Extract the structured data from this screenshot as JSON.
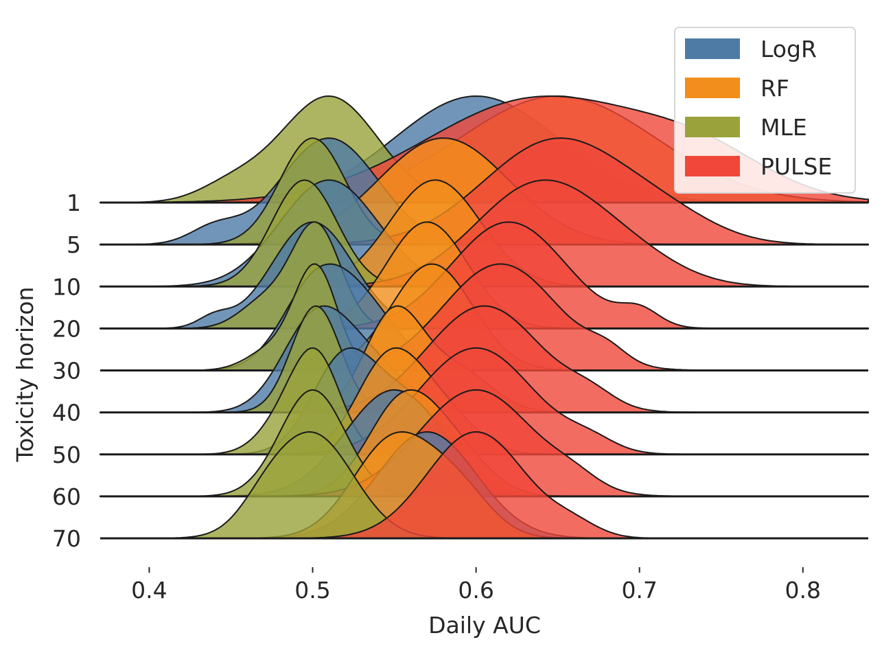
{
  "chart_data": {
    "type": "area",
    "subtype": "ridgeline (joyplot) of kernel density estimates",
    "xlabel": "Daily AUC",
    "ylabel": "Toxicity horizon",
    "xlim": [
      0.37,
      0.84
    ],
    "xticks": [
      "0.4",
      "0.5",
      "0.6",
      "0.7",
      "0.8"
    ],
    "categories": [
      "1",
      "5",
      "10",
      "20",
      "30",
      "40",
      "50",
      "60",
      "70"
    ],
    "legend_placement": "top-right",
    "grid": false,
    "series": [
      {
        "name": "LogR",
        "color": "#4e7aa6",
        "peaks": [
          [
            [
              0.6,
              0.05,
              1.0
            ]
          ],
          [
            [
              0.51,
              0.03,
              1.0
            ],
            [
              0.44,
              0.015,
              0.15
            ]
          ],
          [
            [
              0.51,
              0.03,
              1.0
            ]
          ],
          [
            [
              0.5,
              0.025,
              1.0
            ],
            [
              0.44,
              0.01,
              0.1
            ]
          ],
          [
            [
              0.53,
              0.022,
              0.85
            ],
            [
              0.5,
              0.02,
              1.0
            ]
          ],
          [
            [
              0.53,
              0.025,
              0.7
            ],
            [
              0.5,
              0.02,
              1.0
            ]
          ],
          [
            [
              0.52,
              0.02,
              1.0
            ],
            [
              0.56,
              0.02,
              0.5
            ]
          ],
          [
            [
              0.55,
              0.03,
              1.0
            ]
          ],
          [
            [
              0.57,
              0.03,
              1.0
            ]
          ]
        ]
      },
      {
        "name": "RF",
        "color": "#f28e1c",
        "peaks": [
          [
            [
              0.65,
              0.06,
              1.0
            ]
          ],
          [
            [
              0.58,
              0.04,
              1.0
            ]
          ],
          [
            [
              0.575,
              0.028,
              1.0
            ]
          ],
          [
            [
              0.57,
              0.025,
              1.0
            ]
          ],
          [
            [
              0.573,
              0.025,
              1.0
            ]
          ],
          [
            [
              0.55,
              0.018,
              1.0
            ],
            [
              0.59,
              0.02,
              0.4
            ]
          ],
          [
            [
              0.547,
              0.02,
              1.0
            ],
            [
              0.58,
              0.02,
              0.4
            ]
          ],
          [
            [
              0.556,
              0.022,
              1.0
            ],
            [
              0.59,
              0.02,
              0.35
            ]
          ],
          [
            [
              0.55,
              0.025,
              1.0
            ],
            [
              0.59,
              0.02,
              0.4
            ]
          ]
        ]
      },
      {
        "name": "MLE",
        "color": "#9aa23b",
        "peaks": [
          [
            [
              0.51,
              0.03,
              1.0
            ],
            [
              0.45,
              0.02,
              0.15
            ]
          ],
          [
            [
              0.5,
              0.02,
              1.0
            ]
          ],
          [
            [
              0.495,
              0.02,
              1.0
            ]
          ],
          [
            [
              0.502,
              0.015,
              1.0
            ],
            [
              0.47,
              0.015,
              0.25
            ]
          ],
          [
            [
              0.502,
              0.013,
              1.0
            ],
            [
              0.475,
              0.015,
              0.2
            ]
          ],
          [
            [
              0.502,
              0.015,
              1.0
            ]
          ],
          [
            [
              0.502,
              0.015,
              1.0
            ],
            [
              0.48,
              0.015,
              0.25
            ]
          ],
          [
            [
              0.5,
              0.02,
              1.0
            ]
          ],
          [
            [
              0.5,
              0.025,
              1.0
            ],
            [
              0.47,
              0.015,
              0.15
            ]
          ]
        ]
      },
      {
        "name": "PULSE",
        "color": "#f0473a",
        "peaks": [
          [
            [
              0.64,
              0.07,
              1.0
            ],
            [
              0.74,
              0.04,
              0.3
            ]
          ],
          [
            [
              0.65,
              0.045,
              1.0
            ],
            [
              0.72,
              0.03,
              0.15
            ]
          ],
          [
            [
              0.64,
              0.04,
              1.0
            ],
            [
              0.7,
              0.03,
              0.15
            ]
          ],
          [
            [
              0.62,
              0.035,
              1.0
            ],
            [
              0.7,
              0.012,
              0.15
            ]
          ],
          [
            [
              0.615,
              0.035,
              1.0
            ],
            [
              0.68,
              0.012,
              0.12
            ]
          ],
          [
            [
              0.605,
              0.035,
              1.0
            ],
            [
              0.67,
              0.015,
              0.12
            ]
          ],
          [
            [
              0.6,
              0.035,
              1.0
            ],
            [
              0.67,
              0.015,
              0.1
            ]
          ],
          [
            [
              0.6,
              0.035,
              1.0
            ],
            [
              0.66,
              0.015,
              0.1
            ]
          ],
          [
            [
              0.6,
              0.03,
              1.0
            ],
            [
              0.66,
              0.015,
              0.1
            ]
          ]
        ]
      }
    ]
  }
}
